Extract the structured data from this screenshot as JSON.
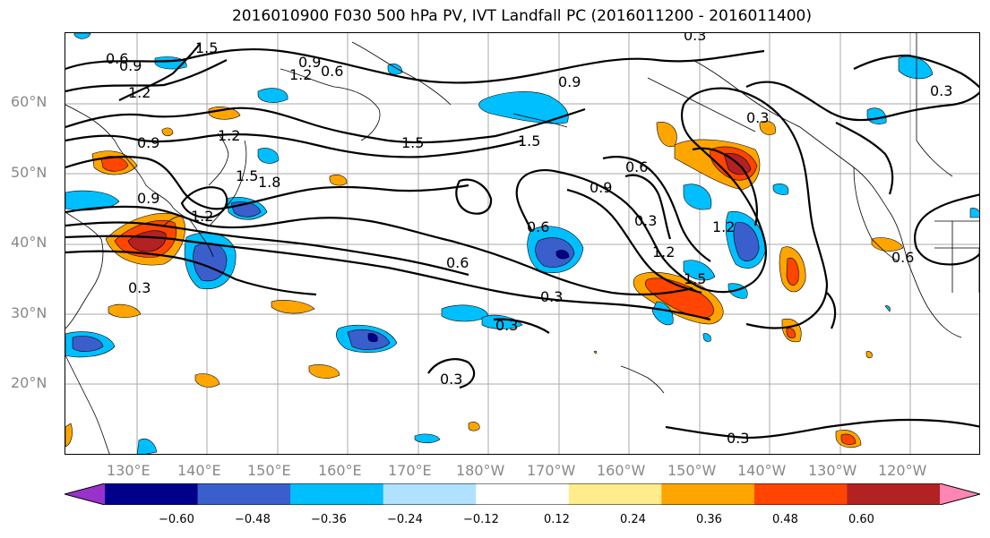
{
  "title": "2016010900 F030 500 hPa PV, IVT Landfall PC (2016011200 - 2016011400)",
  "lat_labels": [
    "60°N",
    "50°N",
    "40°N",
    "30°N",
    "20°N"
  ],
  "lon_labels": [
    "130°E",
    "140°E",
    "150°E",
    "160°E",
    "170°E",
    "180°W",
    "170°W",
    "160°W",
    "150°W",
    "140°W",
    "130°W",
    "120°W"
  ],
  "colorbar": {
    "colors": [
      "#9932cc",
      "#00008b",
      "#3a5fcd",
      "#00bfff",
      "#b0e2ff",
      "#ffffff",
      "#ffec8b",
      "#ffa500",
      "#ff4500",
      "#b22222",
      "#ff86b4"
    ],
    "ticks": [
      "−0.60",
      "−0.48",
      "−0.36",
      "−0.24",
      "−0.12",
      "0.12",
      "0.24",
      "0.36",
      "0.48",
      "0.60"
    ]
  },
  "contour_labels": [
    "0.6",
    "0.9",
    "1.2",
    "1.5",
    "0.6",
    "0.9",
    "1.2",
    "0.9",
    "1.2",
    "1.5",
    "1.8",
    "0.9",
    "1.2",
    "1.5",
    "1.5",
    "0.9",
    "0.6",
    "0.9",
    "0.3",
    "0.6",
    "0.6",
    "0.3",
    "1.2",
    "1.2",
    "1.5",
    "0.3",
    "0.3",
    "0.3",
    "0.3",
    "0.3",
    "0.3",
    "0.6",
    "0.3"
  ]
}
